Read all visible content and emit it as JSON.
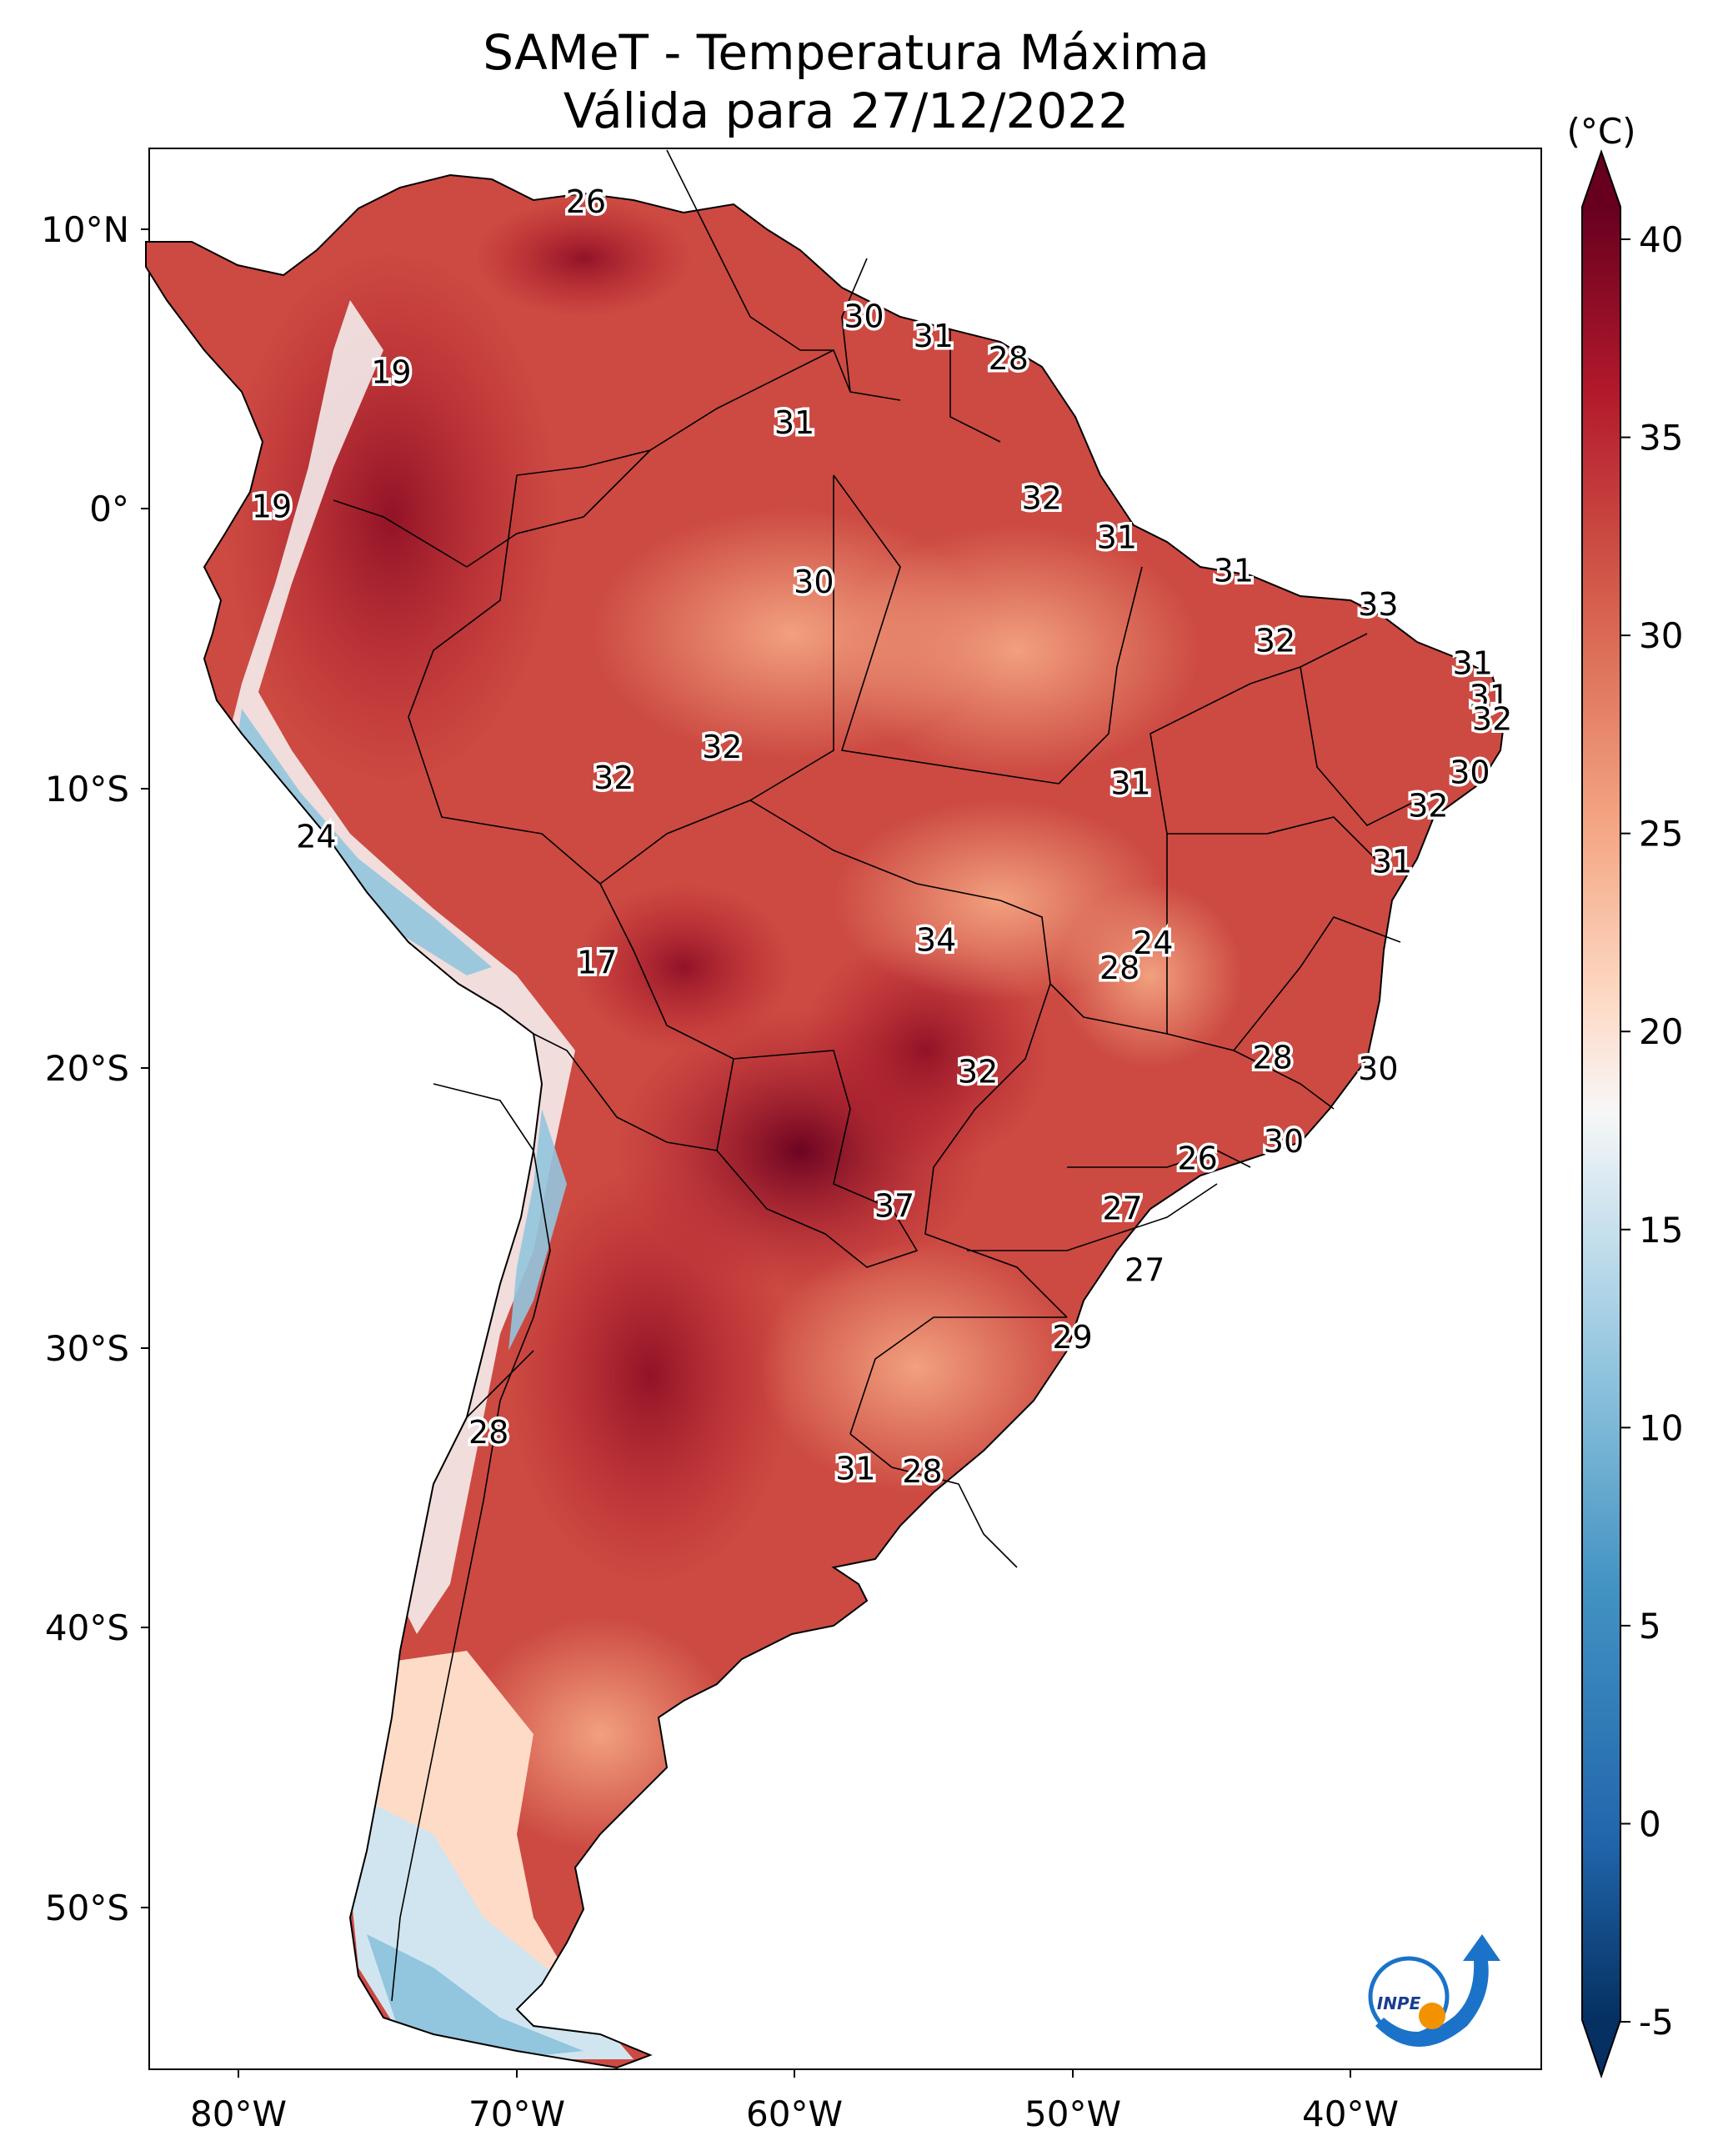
{
  "title": {
    "line1": "SAMeT - Temperatura Máxima",
    "line2": "Válida para 27/12/2022"
  },
  "map": {
    "lon_ticks": [
      "80°W",
      "70°W",
      "60°W",
      "50°W",
      "40°W"
    ],
    "lat_ticks": [
      "10°N",
      "0°",
      "10°S",
      "20°S",
      "30°S",
      "40°S",
      "50°S"
    ],
    "point_labels": [
      {
        "text": "26",
        "lon": -67.5,
        "lat": 10.6
      },
      {
        "text": "30",
        "lon": -57.5,
        "lat": 6.5
      },
      {
        "text": "31",
        "lon": -55.0,
        "lat": 5.8
      },
      {
        "text": "28",
        "lon": -52.3,
        "lat": 5.0
      },
      {
        "text": "19",
        "lon": -74.5,
        "lat": 4.5
      },
      {
        "text": "31",
        "lon": -60.0,
        "lat": 2.7
      },
      {
        "text": "19",
        "lon": -78.8,
        "lat": -0.3
      },
      {
        "text": "32",
        "lon": -51.1,
        "lat": 0.0
      },
      {
        "text": "31",
        "lon": -48.4,
        "lat": -1.4
      },
      {
        "text": "30",
        "lon": -59.3,
        "lat": -3.0
      },
      {
        "text": "31",
        "lon": -44.2,
        "lat": -2.6
      },
      {
        "text": "33",
        "lon": -39.0,
        "lat": -3.8
      },
      {
        "text": "32",
        "lon": -42.7,
        "lat": -5.1
      },
      {
        "text": "31",
        "lon": -35.6,
        "lat": -5.9
      },
      {
        "text": "31",
        "lon": -35.0,
        "lat": -7.1
      },
      {
        "text": "32",
        "lon": -34.9,
        "lat": -7.9
      },
      {
        "text": "32",
        "lon": -62.6,
        "lat": -8.9
      },
      {
        "text": "32",
        "lon": -66.5,
        "lat": -10.0
      },
      {
        "text": "30",
        "lon": -35.7,
        "lat": -9.8
      },
      {
        "text": "31",
        "lon": -47.9,
        "lat": -10.2
      },
      {
        "text": "32",
        "lon": -37.2,
        "lat": -11.0
      },
      {
        "text": "24",
        "lon": -77.2,
        "lat": -12.1
      },
      {
        "text": "31",
        "lon": -38.5,
        "lat": -13.0
      },
      {
        "text": "34",
        "lon": -54.9,
        "lat": -15.8
      },
      {
        "text": "24",
        "lon": -47.1,
        "lat": -15.9
      },
      {
        "text": "28",
        "lon": -48.3,
        "lat": -16.8
      },
      {
        "text": "17",
        "lon": -67.1,
        "lat": -16.6
      },
      {
        "text": "28",
        "lon": -42.8,
        "lat": -20.0
      },
      {
        "text": "30",
        "lon": -39.0,
        "lat": -20.4
      },
      {
        "text": "32",
        "lon": -53.4,
        "lat": -20.5
      },
      {
        "text": "30",
        "lon": -42.4,
        "lat": -23.0
      },
      {
        "text": "26",
        "lon": -45.5,
        "lat": -23.6
      },
      {
        "text": "37",
        "lon": -56.4,
        "lat": -25.3
      },
      {
        "text": "27",
        "lon": -48.2,
        "lat": -25.4
      },
      {
        "text": "27",
        "lon": -47.4,
        "lat": -27.6
      },
      {
        "text": "29",
        "lon": -50.0,
        "lat": -30.0
      },
      {
        "text": "28",
        "lon": -71.0,
        "lat": -33.4
      },
      {
        "text": "31",
        "lon": -57.8,
        "lat": -34.7
      },
      {
        "text": "28",
        "lon": -55.4,
        "lat": -34.8
      }
    ]
  },
  "colorbar": {
    "unit": "(°C)",
    "ticks": [
      "40",
      "35",
      "30",
      "25",
      "20",
      "15",
      "10",
      "5",
      "0",
      "-5"
    ],
    "min": -5,
    "max": 40,
    "colormap": "RdBu_r",
    "extend": "both"
  },
  "logo": {
    "text": "INPE",
    "colors": {
      "blue": "#1a73c8",
      "orange": "#f39200"
    }
  },
  "colors": {
    "ocean": "#ffffff",
    "border": "#000000",
    "hot": "#67001f",
    "warm": "#d6604d",
    "mild": "#fddbc7",
    "cool": "#92c5de",
    "cold": "#2166ac"
  }
}
